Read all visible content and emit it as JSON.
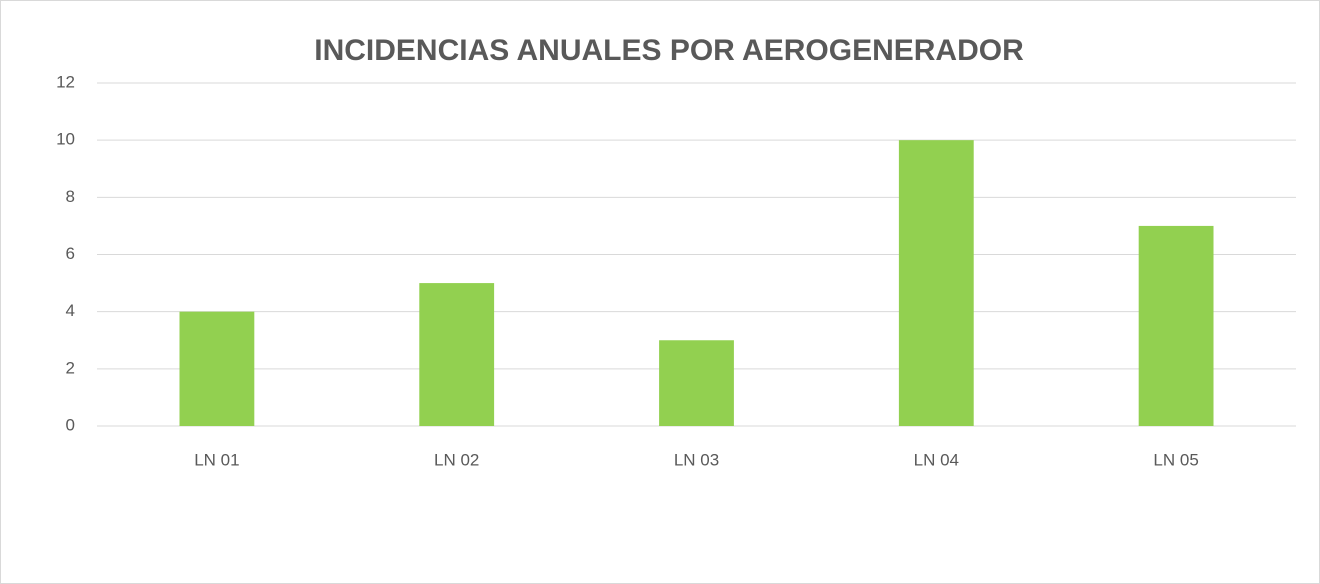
{
  "chart_data": {
    "type": "bar",
    "title": "INCIDENCIAS ANUALES POR AEROGENERADOR",
    "categories": [
      "LN 01",
      "LN 02",
      "LN 03",
      "LN 04",
      "LN 05"
    ],
    "values": [
      4,
      5,
      3,
      10,
      7
    ],
    "color": "#92d050",
    "ylim": [
      0,
      12
    ],
    "yticks": [
      0,
      2,
      4,
      6,
      8,
      10,
      12
    ],
    "grid": true
  }
}
